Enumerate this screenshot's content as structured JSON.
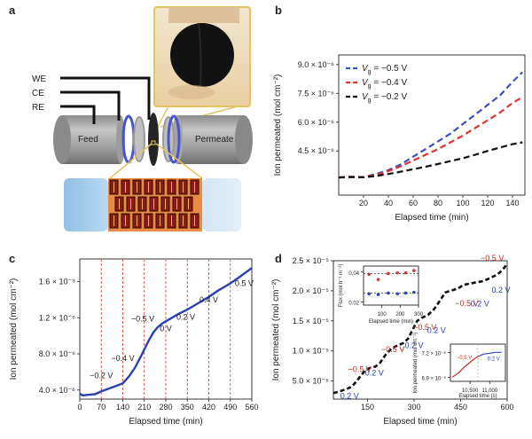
{
  "panel_a": {
    "label": "a",
    "electrode_labels": [
      "WE",
      "CE",
      "RE"
    ],
    "feed_label": "Feed",
    "permeate_label": "Permeate"
  },
  "panel_b": {
    "label": "b"
  },
  "panel_c": {
    "label": "c"
  },
  "panel_d": {
    "label": "d"
  },
  "chart_data": [
    {
      "panel": "b",
      "type": "line",
      "xlabel": "Elapsed time (min)",
      "ylabel": "Ion permeated (mol cm⁻²)",
      "xlim": [
        0,
        150
      ],
      "xticks": [
        20,
        40,
        60,
        80,
        100,
        120,
        140
      ],
      "ylim": [
        2.2e-06,
        9.5e-06
      ],
      "yticks": [
        {
          "v": 4.5e-06,
          "label": "4.5 × 10⁻⁶"
        },
        {
          "v": 6e-06,
          "label": "6.0 × 10⁻⁶"
        },
        {
          "v": 7.5e-06,
          "label": "7.5 × 10⁻⁶"
        },
        {
          "v": 9e-06,
          "label": "9.0 × 10⁻⁶"
        }
      ],
      "grid": false,
      "legend_position": "top-left",
      "series": [
        {
          "name": "Vg = −0.5 V",
          "name_parts": [
            "V",
            "g",
            " = −0.5 V"
          ],
          "color": "#3a4fc6",
          "x": [
            0,
            10,
            20,
            30,
            40,
            50,
            60,
            70,
            80,
            90,
            100,
            110,
            120,
            130,
            140,
            148
          ],
          "y": [
            3.12e-06,
            3.16e-06,
            3.14e-06,
            3.3e-06,
            3.5e-06,
            3.8e-06,
            4.2e-06,
            4.6e-06,
            5e-06,
            5.4e-06,
            5.9e-06,
            6.4e-06,
            6.9e-06,
            7.4e-06,
            8.1e-06,
            8.6e-06
          ]
        },
        {
          "name": "Vg = −0.4 V",
          "name_parts": [
            "V",
            "g",
            " = −0.4 V"
          ],
          "color": "#d8362e",
          "x": [
            0,
            10,
            20,
            30,
            40,
            50,
            60,
            70,
            80,
            90,
            100,
            110,
            120,
            130,
            140,
            148
          ],
          "y": [
            3.12e-06,
            3.15e-06,
            3.14e-06,
            3.25e-06,
            3.45e-06,
            3.7e-06,
            4e-06,
            4.3e-06,
            4.6e-06,
            4.95e-06,
            5.3e-06,
            5.7e-06,
            6.1e-06,
            6.5e-06,
            7e-06,
            7.3e-06
          ]
        },
        {
          "name": "Vg = −0.2 V",
          "name_parts": [
            "V",
            "g",
            " = −0.2 V"
          ],
          "color": "#111111",
          "x": [
            0,
            10,
            20,
            30,
            40,
            50,
            60,
            70,
            80,
            90,
            100,
            110,
            120,
            130,
            140,
            148
          ],
          "y": [
            3.12e-06,
            3.14e-06,
            3.13e-06,
            3.2e-06,
            3.3e-06,
            3.42e-06,
            3.55e-06,
            3.68e-06,
            3.82e-06,
            3.97e-06,
            4.12e-06,
            4.3e-06,
            4.5e-06,
            4.68e-06,
            4.85e-06,
            4.95e-06
          ]
        }
      ]
    },
    {
      "panel": "c",
      "type": "line",
      "xlabel": "Elapsed time (min)",
      "ylabel": "Ion permeated (mol cm⁻²)",
      "xlim": [
        0,
        560
      ],
      "xticks": [
        0,
        70,
        140,
        210,
        280,
        350,
        420,
        490,
        560
      ],
      "ylim": [
        3e-06,
        1.85e-05
      ],
      "yticks": [
        {
          "v": 4e-06,
          "label": "4.0 × 10⁻⁶"
        },
        {
          "v": 8e-06,
          "label": "8.0 × 10⁻⁶"
        },
        {
          "v": 1.2e-05,
          "label": "1.2 × 10⁻⁵"
        },
        {
          "v": 1.6e-05,
          "label": "1.6 × 10⁻⁵"
        }
      ],
      "grid": false,
      "vlines": [
        70,
        140,
        210,
        280,
        350,
        420,
        490
      ],
      "series": [
        {
          "color": "#2840b0",
          "x": [
            0,
            10,
            20,
            35,
            50,
            70,
            90,
            110,
            140,
            160,
            180,
            200,
            210,
            225,
            240,
            255,
            270,
            280,
            300,
            320,
            350,
            380,
            420,
            450,
            490,
            520,
            560
          ],
          "y": [
            3.6e-06,
            3.4e-06,
            3.45e-06,
            3.5e-06,
            3.55e-06,
            3.85e-06,
            4.1e-06,
            4.35e-06,
            4.75e-06,
            5.5e-06,
            6.5e-06,
            7.8e-06,
            8.5e-06,
            9.5e-06,
            1.04e-05,
            1.1e-05,
            1.14e-05,
            1.16e-05,
            1.2e-05,
            1.24e-05,
            1.29e-05,
            1.35e-05,
            1.43e-05,
            1.5e-05,
            1.58e-05,
            1.65e-05,
            1.75e-05
          ]
        }
      ],
      "annotations": [
        {
          "text": "−0.2 V",
          "x": 70,
          "y": 5.3e-06
        },
        {
          "text": "−0.4 V",
          "x": 140,
          "y": 7.2e-06
        },
        {
          "text": "−0.5 V",
          "x": 205,
          "y": 1.16e-05
        },
        {
          "text": "0 V",
          "x": 280,
          "y": 1.05e-05
        },
        {
          "text": "0.2 V",
          "x": 345,
          "y": 1.18e-05
        },
        {
          "text": "0.4 V",
          "x": 420,
          "y": 1.37e-05
        },
        {
          "text": "0.5 V",
          "x": 535,
          "y": 1.55e-05
        }
      ]
    },
    {
      "panel": "d",
      "type": "line",
      "xlabel": "Elapsed time (min)",
      "ylabel": "Ion permeated (mol cm⁻²)",
      "xlim": [
        40,
        600
      ],
      "xticks": [
        150,
        300,
        450,
        600
      ],
      "ylim": [
        2e-06,
        2.5e-05
      ],
      "yticks": [
        {
          "v": 5e-06,
          "label": "5.0 × 10⁻⁶"
        },
        {
          "v": 1e-05,
          "label": "1.0 × 10⁻⁵"
        },
        {
          "v": 1.5e-05,
          "label": "1.5 × 10⁻⁵"
        },
        {
          "v": 2e-05,
          "label": "2.0 × 10⁻⁵"
        },
        {
          "v": 2.5e-05,
          "label": "2.5 × 10⁻⁵"
        }
      ],
      "grid": false,
      "series": [
        {
          "color": "#111111",
          "x": [
            40,
            60,
            80,
            100,
            115,
            130,
            145,
            160,
            175,
            190,
            210,
            230,
            250,
            265,
            280,
            295,
            310,
            325,
            345,
            365,
            385,
            400,
            415,
            430,
            445,
            460,
            480,
            500,
            520,
            540,
            560,
            575,
            590,
            600
          ],
          "y": [
            3e-06,
            3.3e-06,
            3.6e-06,
            4.1e-06,
            5e-06,
            6e-06,
            6.9e-06,
            7.2e-06,
            7.4e-06,
            8e-06,
            9.5e-06,
            1.05e-05,
            1.1e-05,
            1.13e-05,
            1.2e-05,
            1.35e-05,
            1.5e-05,
            1.55e-05,
            1.6e-05,
            1.7e-05,
            1.85e-05,
            1.97e-05,
            2e-05,
            2.02e-05,
            2.05e-05,
            2.1e-05,
            2.12e-05,
            2.14e-05,
            2.16e-05,
            2.2e-05,
            2.25e-05,
            2.3e-05,
            2.38e-05,
            2.45e-05
          ]
        }
      ],
      "annotations": [
        {
          "text": "0.2 V",
          "x": 92,
          "y": 2.1e-06,
          "color": "#2840b0"
        },
        {
          "text": "−0.5 V",
          "x": 125,
          "y": 6.5e-06,
          "color": "#c82a20"
        },
        {
          "text": "0.2 V",
          "x": 172,
          "y": 5.9e-06,
          "color": "#2840b0"
        },
        {
          "text": "−0.5 V",
          "x": 232,
          "y": 9.8e-06,
          "color": "#c82a20"
        },
        {
          "text": "0.2 V",
          "x": 300,
          "y": 1.05e-05,
          "color": "#2840b0"
        },
        {
          "text": "−0.5 V",
          "x": 335,
          "y": 1.35e-05,
          "color": "#c82a20"
        },
        {
          "text": "0.2 V",
          "x": 372,
          "y": 1.3e-05,
          "color": "#2840b0"
        },
        {
          "text": "−0.5 V",
          "x": 470,
          "y": 1.75e-05,
          "color": "#c82a20"
        },
        {
          "text": "0.2 V",
          "x": 512,
          "y": 1.74e-05,
          "color": "#2840b0"
        },
        {
          "text": "−0.5 V",
          "x": 552,
          "y": 2.5e-05,
          "color": "#c82a20"
        },
        {
          "text": "0.2 V",
          "x": 580,
          "y": 1.97e-05,
          "color": "#2840b0"
        }
      ],
      "inset_flux": {
        "type": "scatter",
        "ylabel": "Flux (mol h⁻¹ m⁻²)",
        "xlabel": "Elapsed time (min)",
        "xlim": [
          0,
          300
        ],
        "xticks": [
          100,
          200,
          300
        ],
        "ylim": [
          0.018,
          0.044
        ],
        "yticks": [
          {
            "v": 0.02,
            "label": "0.02"
          },
          {
            "v": 0.04,
            "label": "0.04"
          }
        ],
        "dashed_levels": [
          0.039,
          0.026
        ],
        "series": [
          {
            "color": "#d8362e",
            "x": [
              30,
              80,
              135,
              185,
              230,
              275
            ],
            "y": [
              0.0385,
              0.035,
              0.039,
              0.0395,
              0.0395,
              0.041
            ]
          },
          {
            "color": "#2a44c0",
            "x": [
              30,
              80,
              135,
              185,
              230,
              275
            ],
            "y": [
              0.0255,
              0.025,
              0.026,
              0.0255,
              0.026,
              0.0265
            ]
          }
        ]
      },
      "inset_zoom": {
        "type": "line",
        "ylabel": "Ion permeated (mol cm⁻²)",
        "xlabel": "Elapsed time (s)",
        "xlim": [
          10000,
          11400
        ],
        "xticks": [
          10500,
          11000
        ],
        "xtick_labels": [
          "10,500",
          "11,000"
        ],
        "ylim": [
          6.85e-06,
          7.3e-06
        ],
        "yticks": [
          {
            "v": 7.2e-06,
            "label": "7.2 × 10⁻⁶"
          },
          {
            "v": 6.9e-06,
            "label": "6.9 × 10⁻⁶"
          }
        ],
        "split_x": 10700,
        "series": [
          {
            "color": "#c82a20",
            "x": [
              10050,
              10200,
              10350,
              10500,
              10600,
              10700
            ],
            "y": [
              6.9e-06,
              6.95e-06,
              7.02e-06,
              7.08e-06,
              7.12e-06,
              7.15e-06
            ]
          },
          {
            "color": "#2a44c0",
            "x": [
              10700,
              10850,
              11000,
              11150,
              11300
            ],
            "y": [
              7.15e-06,
              7.18e-06,
              7.19e-06,
              7.2e-06,
              7.2e-06
            ]
          }
        ],
        "annotations": [
          {
            "text": "−0.5 V",
            "x": 10350,
            "y": 7.12e-06,
            "color": "#c82a20"
          },
          {
            "text": "0.2 V",
            "x": 11100,
            "y": 7.1e-06,
            "color": "#2a44c0"
          }
        ]
      }
    }
  ]
}
